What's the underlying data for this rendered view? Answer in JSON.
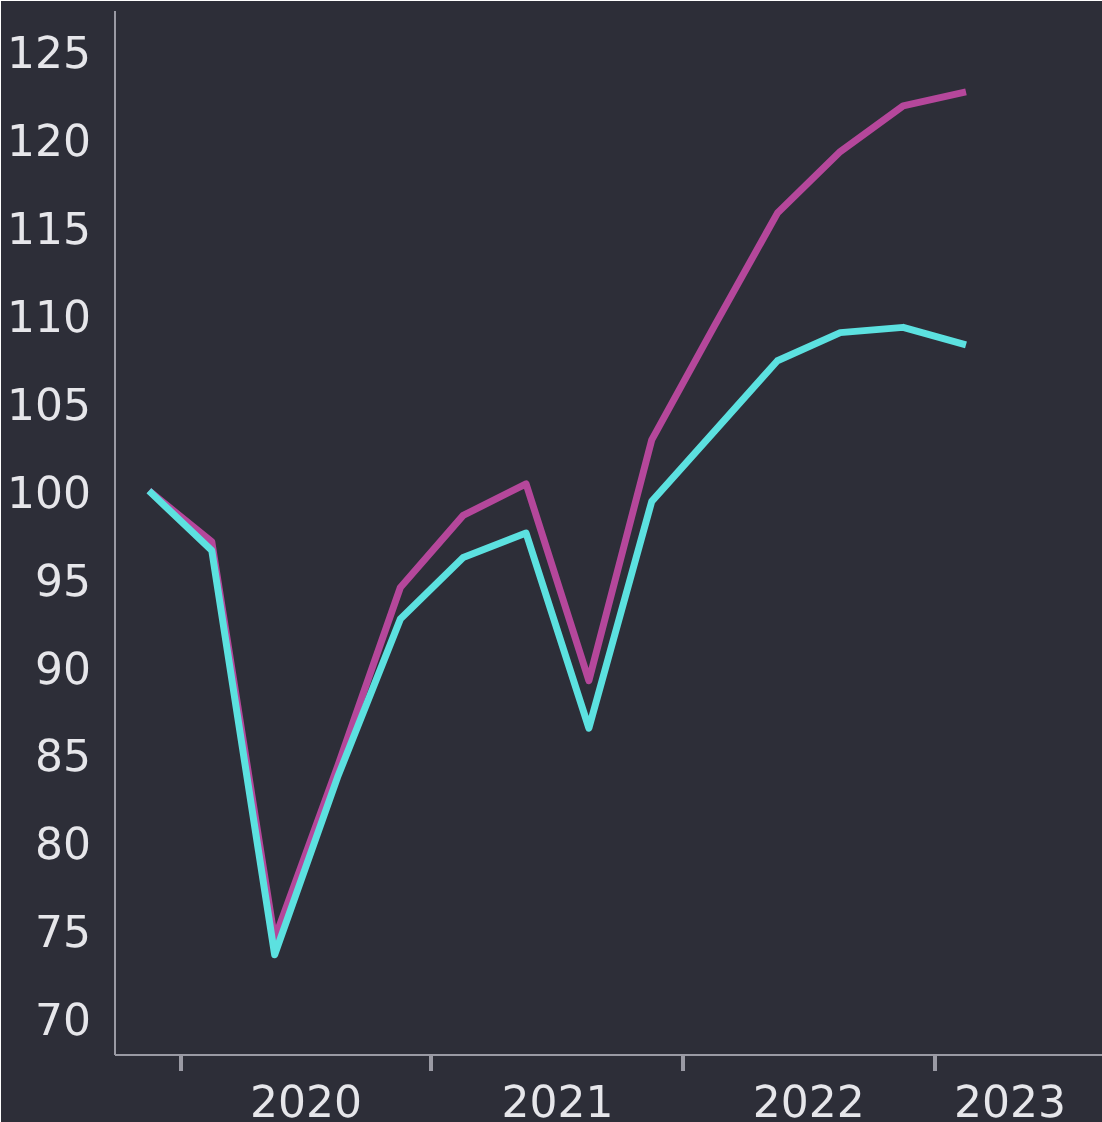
{
  "chart_data": {
    "type": "line",
    "x": [
      2019.875,
      2020.125,
      2020.375,
      2020.625,
      2020.875,
      2021.125,
      2021.375,
      2021.625,
      2021.875,
      2022.125,
      2022.375,
      2022.625,
      2022.875,
      2023.125
    ],
    "series": [
      {
        "color": "#b5479b",
        "values": [
          100,
          97.1,
          74.5,
          84.3,
          94.5,
          98.6,
          100.4,
          89.2,
          102.9,
          109.4,
          115.8,
          119.3,
          121.9,
          122.7
        ]
      },
      {
        "color": "#5ce1e0",
        "values": [
          100,
          96.6,
          73.6,
          83.7,
          92.7,
          96.2,
          97.6,
          86.5,
          99.4,
          103.4,
          107.4,
          109,
          109.3,
          108.3
        ]
      }
    ],
    "xlim": [
      2019.74,
      2023.67
    ],
    "ylim": [
      67.9,
      127.3
    ],
    "xticks": [
      {
        "value": 2020,
        "label": null
      },
      {
        "value": 2020.5,
        "label": "2020"
      },
      {
        "value": 2021,
        "label": null
      },
      {
        "value": 2021.5,
        "label": "2021"
      },
      {
        "value": 2022,
        "label": null
      },
      {
        "value": 2022.5,
        "label": "2022"
      },
      {
        "value": 2023,
        "label": null
      },
      {
        "value": 2023.3,
        "label": "2023"
      }
    ],
    "yticks": [
      70,
      75,
      80,
      85,
      90,
      95,
      100,
      105,
      110,
      115,
      120,
      125
    ],
    "grid": false,
    "line_style": "solid"
  }
}
